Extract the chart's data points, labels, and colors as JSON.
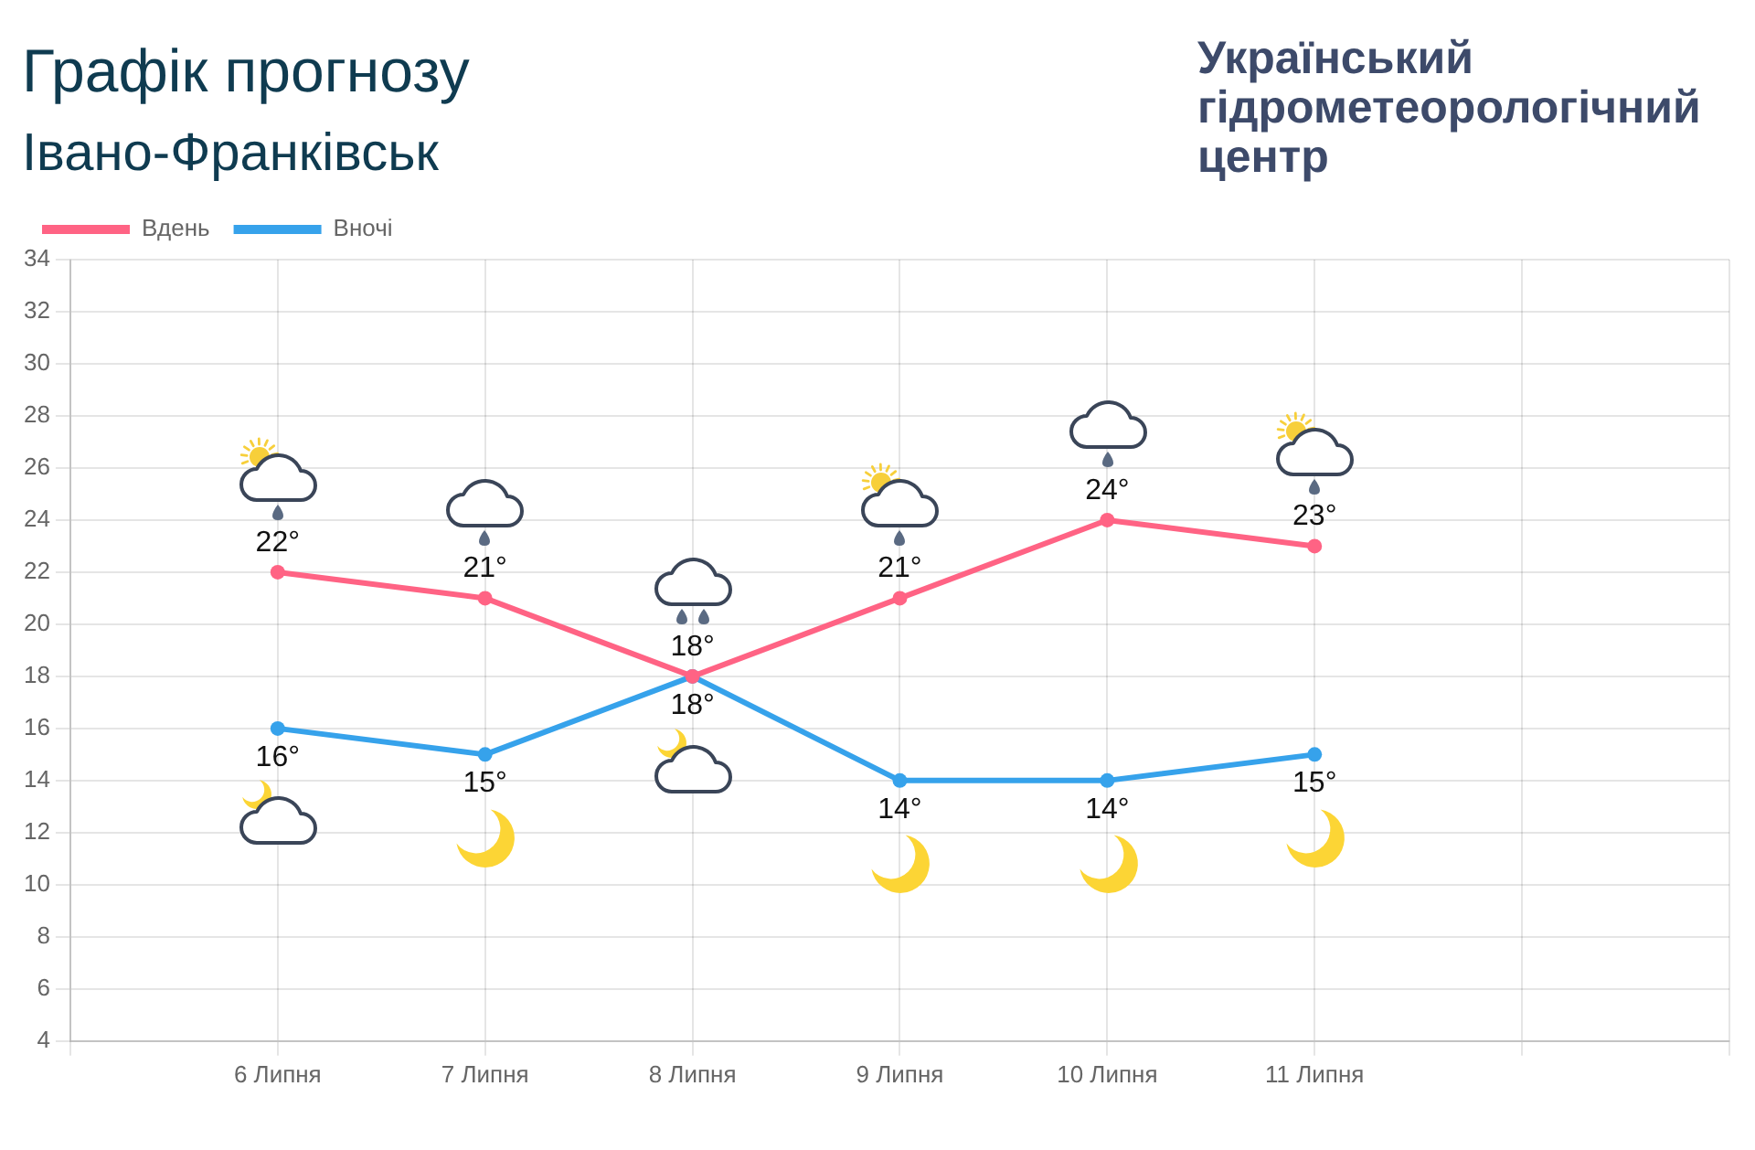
{
  "chart_data": {
    "type": "line",
    "title": "Графік прогнозу",
    "subtitle": "Івано-Франківськ",
    "annotations": [
      "Український гідрометеорологічний центр"
    ],
    "categories": [
      null,
      "6 Липня",
      "7 Липня",
      "8 Липня",
      "9 Липня",
      "10 Липня",
      "11 Липня",
      null,
      null
    ],
    "series": [
      {
        "name": "Вдень",
        "color": "#ff6384",
        "values": [
          null,
          22,
          21,
          18,
          21,
          24,
          23,
          null,
          null
        ],
        "value_labels": [
          null,
          "22°",
          "21°",
          "18°",
          "21°",
          "24°",
          "23°",
          null,
          null
        ]
      },
      {
        "name": "Вночі",
        "color": "#36a2eb",
        "values": [
          null,
          16,
          15,
          18,
          14,
          14,
          15,
          null,
          null
        ],
        "value_labels": [
          null,
          "16°",
          "15°",
          "18°",
          "14°",
          "14°",
          "15°",
          null,
          null
        ]
      }
    ],
    "ylim": [
      4,
      34
    ],
    "yticks": [
      4,
      6,
      8,
      10,
      12,
      14,
      16,
      18,
      20,
      22,
      24,
      26,
      28,
      30,
      32,
      34
    ],
    "grid": true,
    "legend": "top left",
    "marker": "circle",
    "line_style": "solid"
  }
}
